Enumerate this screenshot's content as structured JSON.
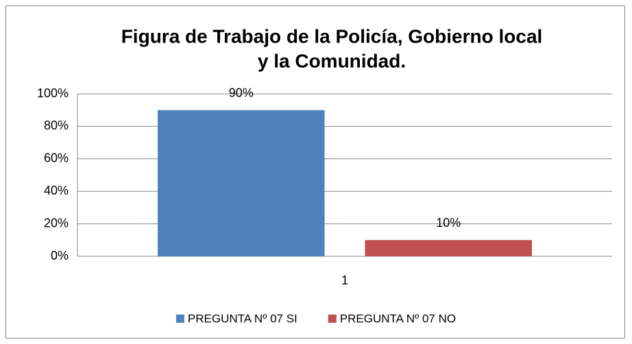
{
  "chart_data": {
    "type": "bar",
    "title": [
      "Figura de Trabajo de la Policía, Gobierno local",
      "y la Comunidad."
    ],
    "categories": [
      "1"
    ],
    "series": [
      {
        "name": "PREGUNTA Nº 07 SI",
        "color": "#4f81bd",
        "values": [
          90
        ],
        "value_labels": [
          "90%"
        ]
      },
      {
        "name": "PREGUNTA Nº 07 NO",
        "color": "#c0504d",
        "values": [
          10
        ],
        "value_labels": [
          "10%"
        ]
      }
    ],
    "ylim": [
      0,
      100
    ],
    "yticks": [
      {
        "value": 0,
        "label": "0%"
      },
      {
        "value": 20,
        "label": "20%"
      },
      {
        "value": 40,
        "label": "40%"
      },
      {
        "value": 60,
        "label": "60%"
      },
      {
        "value": 80,
        "label": "80%"
      },
      {
        "value": 100,
        "label": "100%"
      }
    ],
    "grid": true,
    "legend": "bottom"
  }
}
